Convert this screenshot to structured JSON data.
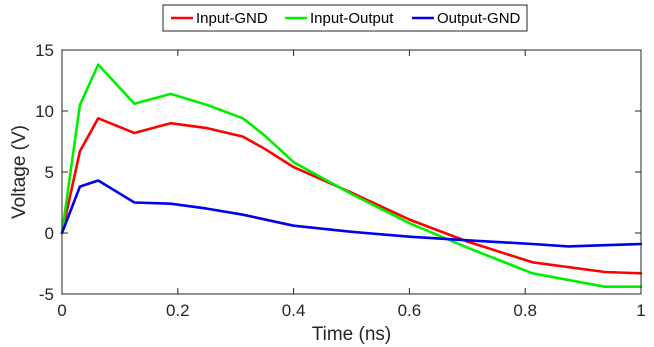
{
  "chart_data": {
    "type": "line",
    "xlabel": "Time (ns)",
    "ylabel": "Voltage (V)",
    "xlim": [
      0,
      1
    ],
    "ylim": [
      -5,
      15
    ],
    "xticks": [
      0,
      0.2,
      0.4,
      0.6,
      0.8,
      1
    ],
    "xtick_labels": [
      "0",
      "0.2",
      "0.4",
      "0.6",
      "0.8",
      "1"
    ],
    "yticks": [
      -5,
      0,
      5,
      10,
      15
    ],
    "ytick_labels": [
      "-5",
      "0",
      "5",
      "10",
      "15"
    ],
    "grid": false,
    "legend_position": "top-center",
    "series": [
      {
        "name": "Input-GND",
        "color": "#ff0000",
        "x": [
          0,
          0.031,
          0.0625,
          0.125,
          0.1875,
          0.25,
          0.3125,
          0.35,
          0.4,
          0.5,
          0.6,
          0.7,
          0.8125,
          0.9375,
          1.0
        ],
        "y": [
          0,
          6.7,
          9.4,
          8.2,
          9.0,
          8.6,
          7.9,
          6.9,
          5.4,
          3.3,
          1.1,
          -0.7,
          -2.4,
          -3.2,
          -3.3
        ]
      },
      {
        "name": "Input-Output",
        "color": "#00ee00",
        "x": [
          0,
          0.031,
          0.0625,
          0.125,
          0.1875,
          0.25,
          0.3125,
          0.35,
          0.4,
          0.5,
          0.6,
          0.7,
          0.8125,
          0.9375,
          1.0
        ],
        "y": [
          0,
          10.5,
          13.8,
          10.6,
          11.4,
          10.5,
          9.4,
          8.0,
          5.8,
          3.2,
          0.8,
          -1.2,
          -3.3,
          -4.4,
          -4.4
        ]
      },
      {
        "name": "Output-GND",
        "color": "#0000ee",
        "x": [
          0,
          0.031,
          0.0625,
          0.125,
          0.1875,
          0.25,
          0.3125,
          0.4,
          0.5,
          0.6,
          0.7,
          0.8125,
          0.875,
          0.9375,
          1.0
        ],
        "y": [
          0,
          3.8,
          4.3,
          2.5,
          2.4,
          2.0,
          1.5,
          0.6,
          0.1,
          -0.3,
          -0.6,
          -0.9,
          -1.1,
          -1.0,
          -0.9
        ]
      }
    ]
  }
}
